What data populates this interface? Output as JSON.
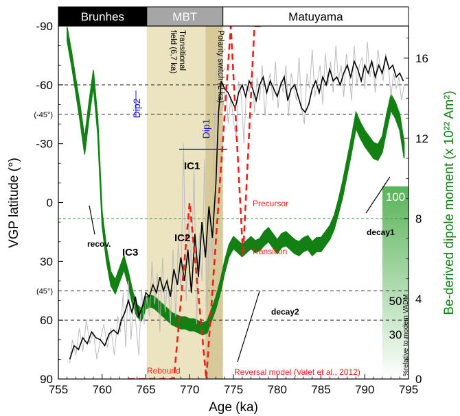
{
  "chart_data": {
    "type": "line",
    "xlabel": "Age (ka)",
    "ylabel_left": "VGP latitude (°)",
    "ylabel_right": "Be-derived dipole moment (x 10²² Am²)",
    "x_ticks": [
      "755",
      "760",
      "765",
      "770",
      "775",
      "780",
      "785",
      "790",
      "795"
    ],
    "y_left_ticks": [
      "-90",
      "-60",
      "-30",
      "0",
      "30",
      "60",
      "90"
    ],
    "y_left_extra": [
      "(-45°)",
      "(45°)"
    ],
    "y_right_ticks": [
      "0",
      "4",
      "8",
      "12",
      "16"
    ],
    "xlim": [
      755,
      795
    ],
    "ylim_left": [
      -90,
      90
    ],
    "ylim_right": [
      0,
      17.6
    ],
    "polarity_bar": [
      {
        "label": "Brunhes",
        "from": 755,
        "to": 765.1,
        "color": "#000000",
        "text_color": "#ffffff"
      },
      {
        "label": "MBT",
        "from": 765.1,
        "to": 773.8,
        "color": "#a6a6a6",
        "text_color": "#ffffff"
      },
      {
        "label": "Matuyama",
        "from": 773.8,
        "to": 795,
        "color": "#ffffff",
        "text_color": "#000000"
      }
    ],
    "regions": [
      {
        "label": "Transitional field (6,7 ka)",
        "from": 765.1,
        "to": 771.8,
        "color": "#ece4c0"
      },
      {
        "label": "Polarity switch (2 ka)",
        "from": 771.8,
        "to": 773.8,
        "color": "#d8c99a"
      }
    ],
    "annotations": {
      "dip2": "Dip2",
      "dip1": "Dip1",
      "ic1": "IC1",
      "ic2": "IC2",
      "ic3": "IC3",
      "recov": "recov.",
      "decay1": "decay1",
      "decay2": "decay2",
      "precursor": "Precursor",
      "transition": "Transition",
      "rebound": "Rebound",
      "reversal_model": "Reversal model (Valet et al., 2012)"
    },
    "vadm_scale": {
      "labels": [
        "100",
        "50",
        "30"
      ],
      "caption": "%relative to modern VADM"
    },
    "series": [
      {
        "name": "vgp_raw",
        "color": "#bbbbbb",
        "axis": "left",
        "x": [
          756.3,
          756.6,
          757.0,
          757.4,
          757.8,
          758.2,
          758.6,
          759.0,
          759.4,
          759.8,
          760.2,
          760.6,
          761.0,
          761.4,
          761.8,
          762.1,
          762.4,
          762.7,
          763.0,
          763.3,
          763.6,
          763.9,
          764.2,
          764.5,
          764.8,
          765.1,
          765.4,
          765.7,
          766.0,
          766.3,
          766.6,
          766.9,
          767.2,
          767.5,
          767.8,
          768.1,
          768.4,
          768.7,
          769.0,
          769.3,
          769.6,
          769.9,
          770.2,
          770.5,
          770.8,
          771.1,
          771.4,
          771.7,
          772.0,
          772.3,
          772.6,
          772.9,
          773.2,
          773.5,
          773.8,
          774.1,
          774.4,
          774.7,
          775.0,
          775.3,
          775.6,
          775.9,
          776.2,
          776.5,
          776.8,
          777.1,
          777.4,
          777.7,
          778.0,
          778.3,
          778.6,
          778.9,
          779.2,
          779.5,
          779.8,
          780.1,
          780.4,
          780.7,
          781.0,
          781.3,
          781.6,
          781.9,
          782.2,
          782.5,
          782.8,
          783.1,
          783.4,
          783.7,
          784.0,
          784.3,
          784.6,
          784.9,
          785.2,
          785.5,
          785.8,
          786.1,
          786.4,
          786.7,
          787.0,
          787.3,
          787.6,
          787.9,
          788.2,
          788.5,
          788.8,
          789.1,
          789.4,
          789.7,
          790.0,
          790.3,
          790.6,
          790.9,
          791.2,
          791.5,
          791.8,
          792.1,
          792.4,
          792.7,
          793.0,
          793.3,
          793.6,
          793.9,
          794.2,
          794.5
        ],
        "y": [
          82,
          70,
          78,
          64,
          76,
          60,
          72,
          66,
          80,
          70,
          62,
          74,
          64,
          78,
          58,
          66,
          46,
          74,
          40,
          70,
          50,
          64,
          78,
          44,
          62,
          48,
          58,
          30,
          52,
          36,
          66,
          28,
          56,
          38,
          62,
          24,
          58,
          20,
          44,
          -30,
          50,
          8,
          34,
          -18,
          62,
          16,
          40,
          -22,
          56,
          2,
          28,
          -56,
          -76,
          -66,
          -48,
          -60,
          -40,
          -54,
          -42,
          -32,
          -62,
          -54,
          -30,
          -60,
          -56,
          -68,
          -46,
          -64,
          -52,
          -70,
          -44,
          -60,
          -66,
          -52,
          -72,
          -48,
          -62,
          -56,
          -70,
          -44,
          -66,
          -58,
          -52,
          -74,
          -48,
          -40,
          -66,
          -58,
          -78,
          -54,
          -62,
          -70,
          -50,
          -76,
          -60,
          -72,
          -56,
          -80,
          -62,
          -70,
          -54,
          -76,
          -66,
          -52,
          -80,
          -60,
          -70,
          -74,
          -58,
          -82,
          -64,
          -72,
          -56,
          -78,
          -68,
          -62,
          -76,
          -70,
          -54,
          -66,
          -58,
          -64,
          -52,
          -60
        ]
      },
      {
        "name": "vgp_smooth",
        "color": "#000000",
        "axis": "left",
        "x": [
          756.3,
          756.8,
          757.3,
          757.8,
          758.3,
          758.8,
          759.3,
          759.8,
          760.3,
          760.8,
          761.3,
          761.8,
          762.2,
          762.6,
          763.0,
          763.4,
          763.8,
          764.2,
          764.6,
          765.0,
          765.4,
          765.8,
          766.2,
          766.6,
          767.0,
          767.4,
          767.8,
          768.2,
          768.6,
          769.0,
          769.4,
          769.8,
          770.2,
          770.6,
          771.0,
          771.4,
          771.8,
          772.2,
          772.6,
          773.0,
          773.3,
          773.6,
          774.0,
          774.4,
          774.8,
          775.2,
          775.6,
          776.0,
          776.4,
          776.8,
          777.2,
          777.6,
          778.0,
          778.4,
          778.8,
          779.2,
          779.6,
          780.0,
          780.4,
          780.8,
          781.2,
          781.6,
          782.0,
          782.4,
          782.8,
          783.2,
          783.6,
          784.0,
          784.4,
          784.8,
          785.2,
          785.6,
          786.0,
          786.4,
          786.8,
          787.2,
          787.6,
          788.0,
          788.4,
          788.8,
          789.2,
          789.6,
          790.0,
          790.4,
          790.8,
          791.2,
          791.6,
          792.0,
          792.4,
          792.8,
          793.2,
          793.6,
          794.0,
          794.4
        ],
        "y": [
          80,
          73,
          75,
          69,
          72,
          66,
          69,
          70,
          73,
          67,
          65,
          67,
          60,
          56,
          50,
          56,
          48,
          58,
          53,
          46,
          48,
          42,
          46,
          38,
          45,
          40,
          48,
          34,
          42,
          28,
          40,
          24,
          46,
          16,
          38,
          10,
          28,
          2,
          18,
          -10,
          -46,
          -62,
          -58,
          -56,
          -52,
          -48,
          -56,
          -60,
          -54,
          -62,
          -58,
          -52,
          -60,
          -64,
          -56,
          -62,
          -58,
          -54,
          -60,
          -64,
          -52,
          -58,
          -60,
          -54,
          -48,
          -46,
          -50,
          -58,
          -62,
          -56,
          -64,
          -60,
          -68,
          -62,
          -64,
          -60,
          -66,
          -70,
          -64,
          -72,
          -68,
          -62,
          -70,
          -66,
          -72,
          -64,
          -70,
          -66,
          -74,
          -68,
          -70,
          -64,
          -66,
          -62
        ]
      },
      {
        "name": "be_dipole",
        "color": "#128012",
        "axis": "right",
        "x": [
          756.0,
          756.5,
          757.0,
          757.5,
          758.0,
          758.5,
          759.0,
          759.5,
          760.0,
          760.5,
          761.0,
          761.5,
          762.0,
          762.5,
          763.0,
          763.5,
          764.0,
          764.5,
          765.0,
          765.5,
          766.0,
          766.5,
          767.0,
          767.5,
          768.0,
          768.5,
          769.0,
          769.5,
          770.0,
          770.5,
          771.0,
          771.5,
          772.0,
          772.5,
          773.0,
          773.5,
          774.0,
          774.5,
          775.0,
          775.5,
          776.0,
          776.5,
          777.0,
          777.5,
          778.0,
          778.5,
          779.0,
          779.5,
          780.0,
          780.5,
          781.0,
          781.5,
          782.0,
          782.5,
          783.0,
          783.5,
          784.0,
          784.5,
          785.0,
          785.5,
          786.0,
          786.5,
          787.0,
          787.5,
          788.0,
          788.5,
          789.0,
          789.5,
          790.0,
          790.5,
          791.0,
          791.5,
          792.0,
          792.5,
          793.0,
          793.5,
          794.0,
          794.5
        ],
        "y": [
          17.2,
          16.0,
          14.6,
          13.2,
          11.6,
          13.4,
          15.0,
          12.6,
          8.0,
          6.2,
          5.0,
          4.6,
          5.2,
          5.8,
          5.0,
          4.0,
          3.4,
          3.2,
          3.8,
          3.9,
          3.8,
          3.6,
          3.4,
          3.2,
          3.0,
          2.9,
          2.8,
          2.8,
          2.7,
          2.7,
          2.6,
          2.5,
          2.6,
          3.2,
          3.8,
          4.6,
          5.6,
          6.4,
          6.8,
          6.6,
          6.4,
          6.6,
          6.8,
          6.6,
          6.7,
          7.0,
          7.2,
          6.9,
          6.6,
          6.9,
          7.0,
          6.8,
          6.6,
          6.5,
          6.7,
          6.8,
          6.5,
          6.7,
          6.7,
          7.0,
          7.3,
          7.8,
          8.6,
          9.5,
          10.6,
          11.7,
          12.9,
          12.4,
          12.0,
          11.7,
          11.4,
          11.3,
          11.7,
          12.8,
          13.8,
          13.4,
          12.8,
          11.4
        ],
        "band_half_width": [
          0.35,
          0.35,
          0.35,
          0.4,
          0.4,
          0.4,
          0.4,
          0.4,
          0.35,
          0.35,
          0.35,
          0.35,
          0.35,
          0.35,
          0.35,
          0.35,
          0.3,
          0.3,
          0.3,
          0.3,
          0.3,
          0.3,
          0.3,
          0.3,
          0.3,
          0.3,
          0.3,
          0.3,
          0.3,
          0.3,
          0.3,
          0.3,
          0.3,
          0.3,
          0.3,
          0.3,
          0.3,
          0.3,
          0.3,
          0.3,
          0.3,
          0.3,
          0.3,
          0.3,
          0.3,
          0.35,
          0.35,
          0.35,
          0.35,
          0.35,
          0.35,
          0.35,
          0.35,
          0.35,
          0.35,
          0.35,
          0.35,
          0.35,
          0.35,
          0.35,
          0.35,
          0.35,
          0.35,
          0.4,
          0.4,
          0.4,
          0.4,
          0.4,
          0.4,
          0.4,
          0.4,
          0.4,
          0.4,
          0.4,
          0.4,
          0.4,
          0.4,
          0.4
        ]
      },
      {
        "name": "reversal_model",
        "color": "#e8211b",
        "axis": "left",
        "x": [
          763.0,
          768.2,
          770.0,
          771.9,
          773.3,
          774.7,
          776.1,
          777.4,
          778.6
        ],
        "y": [
          90,
          90,
          0,
          90,
          0,
          -90,
          27,
          -90,
          -90
        ]
      }
    ],
    "reference_lines": [
      {
        "axis": "left",
        "value": -60
      },
      {
        "axis": "left",
        "value": -45
      },
      {
        "axis": "left",
        "value": 45
      },
      {
        "axis": "left",
        "value": 60
      },
      {
        "axis": "right",
        "value": 8
      }
    ]
  }
}
